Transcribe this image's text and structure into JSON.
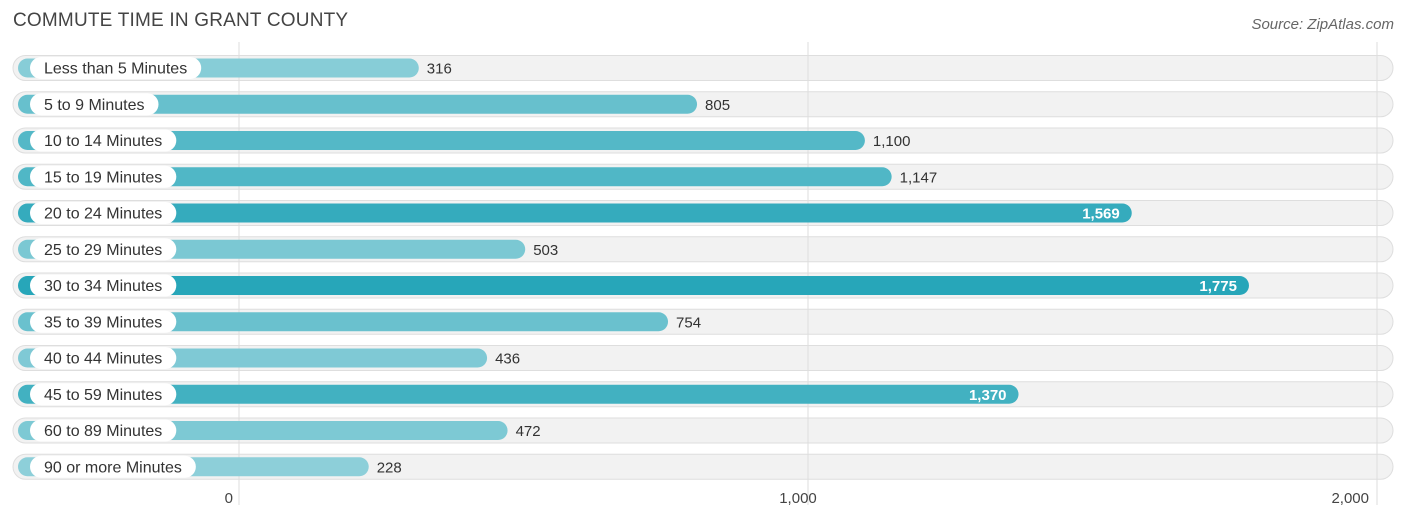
{
  "chart_data": {
    "type": "bar",
    "orientation": "horizontal",
    "title": "COMMUTE TIME IN GRANT COUNTY",
    "source": "Source: ZipAtlas.com",
    "categories": [
      "Less than 5 Minutes",
      "5 to 9 Minutes",
      "10 to 14 Minutes",
      "15 to 19 Minutes",
      "20 to 24 Minutes",
      "25 to 29 Minutes",
      "30 to 34 Minutes",
      "35 to 39 Minutes",
      "40 to 44 Minutes",
      "45 to 59 Minutes",
      "60 to 89 Minutes",
      "90 or more Minutes"
    ],
    "values": [
      316,
      805,
      1100,
      1147,
      1569,
      503,
      1775,
      754,
      436,
      1370,
      472,
      228
    ],
    "value_labels": [
      "316",
      "805",
      "1,100",
      "1,147",
      "1,569",
      "503",
      "1,775",
      "754",
      "436",
      "1,370",
      "472",
      "228"
    ],
    "xlim": [
      0,
      2000
    ],
    "x_ticks": [
      0,
      1000,
      2000
    ],
    "x_tick_labels": [
      "0",
      "1,000",
      "2,000"
    ],
    "grid": true,
    "colors": {
      "bar_light": "#8dcfd9",
      "bar_dark": "#27a6b9"
    }
  }
}
